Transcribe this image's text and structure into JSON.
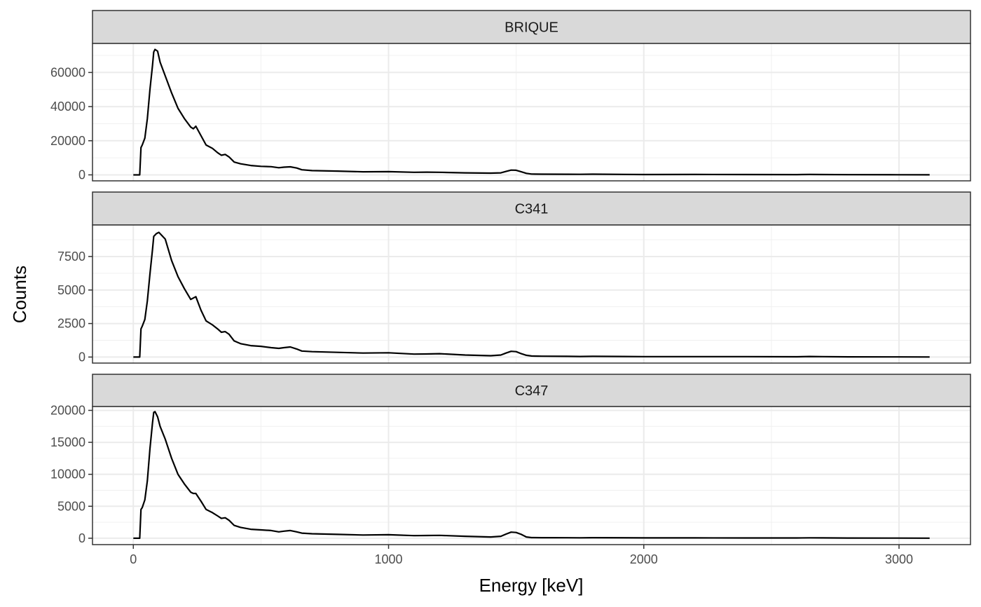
{
  "chart_data": {
    "type": "line",
    "layout": "facet-stacked",
    "xlabel": "Energy [keV]",
    "ylabel": "Counts",
    "x_ticks": [
      0,
      1000,
      2000,
      3000
    ],
    "x_tick_labels": [
      "0",
      "1000",
      "2000",
      "3000"
    ],
    "xlim": [
      -160,
      3280
    ],
    "grid": true,
    "line_color": "#000000",
    "strip_fill": "#d9d9d9",
    "panels": [
      {
        "name": "BRIQUE",
        "ylim": [
          -3500,
          77000
        ],
        "y_ticks": [
          0,
          20000,
          40000,
          60000
        ],
        "y_tick_labels": [
          "0",
          "20000",
          "40000",
          "60000"
        ],
        "x": [
          0,
          25,
          30,
          35,
          45,
          55,
          65,
          75,
          80,
          85,
          95,
          105,
          125,
          150,
          175,
          200,
          225,
          235,
          245,
          265,
          285,
          310,
          330,
          345,
          360,
          375,
          395,
          420,
          460,
          500,
          540,
          570,
          590,
          615,
          640,
          660,
          700,
          800,
          900,
          1000,
          1100,
          1150,
          1200,
          1300,
          1400,
          1440,
          1460,
          1480,
          1500,
          1520,
          1540,
          1560,
          1600,
          1700,
          1750,
          1800,
          2000,
          2200,
          2400,
          2600,
          2650,
          2700,
          2800,
          3000,
          3120
        ],
        "y": [
          0,
          0,
          16000,
          17500,
          21500,
          33000,
          50000,
          64000,
          72000,
          73500,
          72500,
          66000,
          58000,
          48000,
          39000,
          33000,
          28000,
          27000,
          28500,
          23000,
          17500,
          15500,
          13000,
          11500,
          12000,
          10500,
          7500,
          6500,
          5500,
          5000,
          4800,
          4200,
          4500,
          4700,
          4000,
          3000,
          2500,
          2200,
          1800,
          1900,
          1500,
          1600,
          1500,
          1200,
          1000,
          1200,
          2000,
          2800,
          2700,
          1800,
          900,
          500,
          400,
          350,
          300,
          400,
          200,
          250,
          200,
          150,
          250,
          200,
          100,
          80,
          50
        ]
      },
      {
        "name": "C341",
        "ylim": [
          -450,
          9850
        ],
        "y_ticks": [
          0,
          2500,
          5000,
          7500
        ],
        "y_tick_labels": [
          "0",
          "2500",
          "5000",
          "7500"
        ],
        "x": [
          0,
          25,
          30,
          35,
          45,
          55,
          65,
          75,
          80,
          90,
          100,
          110,
          125,
          150,
          175,
          200,
          225,
          235,
          245,
          265,
          285,
          310,
          330,
          345,
          360,
          375,
          395,
          420,
          460,
          500,
          540,
          570,
          590,
          615,
          640,
          660,
          700,
          800,
          900,
          1000,
          1100,
          1150,
          1200,
          1300,
          1400,
          1440,
          1460,
          1480,
          1500,
          1520,
          1540,
          1560,
          1600,
          1700,
          1750,
          1800,
          2000,
          2200,
          2400,
          2600,
          2650,
          2700,
          2800,
          3000,
          3120
        ],
        "y": [
          0,
          0,
          2100,
          2300,
          2800,
          4200,
          6200,
          8000,
          9000,
          9200,
          9300,
          9100,
          8800,
          7200,
          6000,
          5100,
          4300,
          4400,
          4500,
          3500,
          2700,
          2400,
          2100,
          1850,
          1900,
          1700,
          1200,
          1000,
          850,
          800,
          700,
          650,
          700,
          750,
          600,
          450,
          400,
          350,
          300,
          320,
          220,
          230,
          250,
          150,
          100,
          150,
          300,
          430,
          400,
          250,
          130,
          80,
          60,
          50,
          40,
          50,
          30,
          30,
          30,
          20,
          40,
          30,
          15,
          10,
          5
        ]
      },
      {
        "name": "C347",
        "ylim": [
          -1000,
          20600
        ],
        "y_ticks": [
          0,
          5000,
          10000,
          15000,
          20000
        ],
        "y_tick_labels": [
          "0",
          "5000",
          "10000",
          "15000",
          "20000"
        ],
        "x": [
          0,
          25,
          30,
          35,
          45,
          55,
          65,
          75,
          80,
          85,
          95,
          105,
          125,
          150,
          175,
          200,
          225,
          235,
          245,
          265,
          285,
          310,
          330,
          345,
          360,
          375,
          395,
          420,
          460,
          500,
          540,
          570,
          590,
          615,
          640,
          660,
          700,
          800,
          900,
          1000,
          1100,
          1150,
          1200,
          1300,
          1400,
          1440,
          1460,
          1480,
          1500,
          1520,
          1540,
          1560,
          1600,
          1700,
          1750,
          1800,
          2000,
          2200,
          2400,
          2600,
          2650,
          2700,
          2800,
          3000,
          3120
        ],
        "y": [
          0,
          0,
          4500,
          4800,
          6000,
          9000,
          14000,
          18000,
          19700,
          19800,
          19000,
          17500,
          15500,
          12500,
          10000,
          8500,
          7200,
          7000,
          7000,
          5800,
          4500,
          4000,
          3500,
          3100,
          3200,
          2800,
          2000,
          1700,
          1400,
          1300,
          1200,
          1000,
          1100,
          1200,
          1000,
          800,
          700,
          600,
          500,
          550,
          400,
          420,
          450,
          300,
          200,
          300,
          650,
          950,
          900,
          600,
          200,
          100,
          80,
          70,
          60,
          80,
          50,
          50,
          40,
          40,
          60,
          50,
          30,
          20,
          10
        ]
      }
    ]
  }
}
